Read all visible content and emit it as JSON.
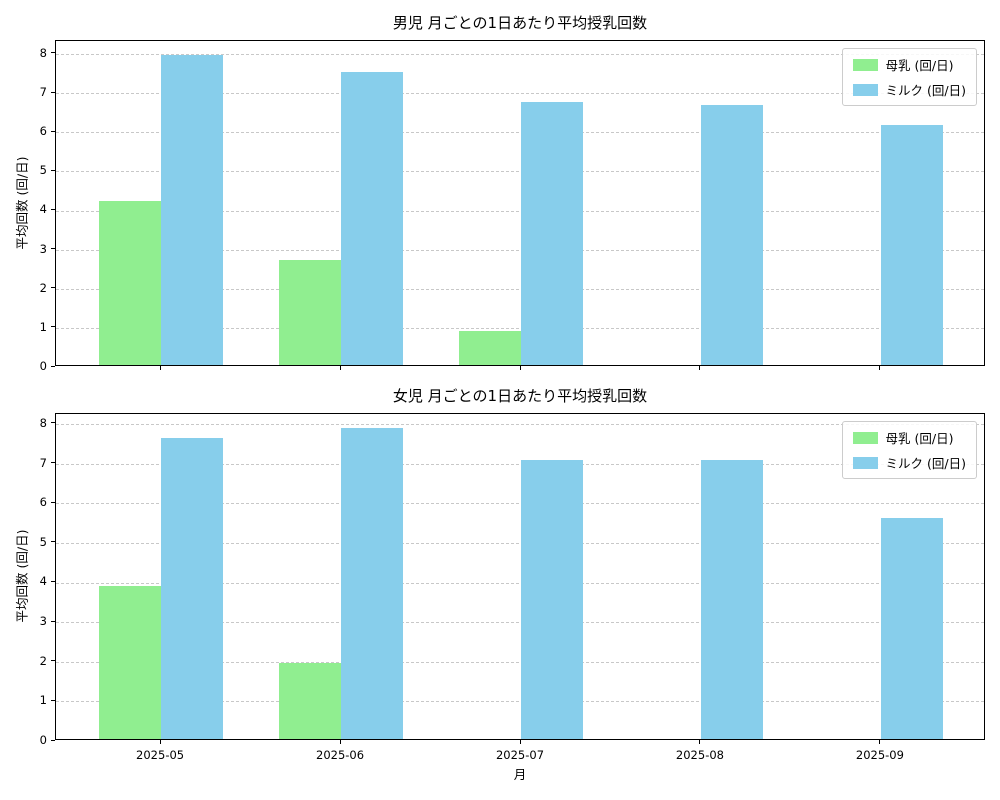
{
  "figure": {
    "background": "#ffffff",
    "colors": {
      "breast_milk": "#90ee90",
      "formula_milk": "#87ceeb",
      "grid": "#c8c8c8",
      "axis": "#000000"
    }
  },
  "chart_data": [
    {
      "type": "bar",
      "title": "男児 月ごとの1日あたり平均授乳回数",
      "xlabel": "",
      "ylabel": "平均回数 (回/日)",
      "categories": [
        "2025-05",
        "2025-06",
        "2025-07",
        "2025-08",
        "2025-09"
      ],
      "series": [
        {
          "name": "母乳 (回/日)",
          "color": "#90ee90",
          "values": [
            4.19,
            2.69,
            0.87,
            0,
            0
          ]
        },
        {
          "name": "ミルク (回/日)",
          "color": "#87ceeb",
          "values": [
            7.93,
            7.48,
            6.71,
            6.64,
            6.14
          ]
        }
      ],
      "ylim": [
        0,
        8.33
      ],
      "yticks": [
        0,
        1,
        2,
        3,
        4,
        5,
        6,
        7,
        8
      ],
      "grid": "horizontal-dashed",
      "legend_position": "upper right",
      "x_tick_labels_visible": false
    },
    {
      "type": "bar",
      "title": "女児 月ごとの1日あたり平均授乳回数",
      "xlabel": "月",
      "ylabel": "平均回数 (回/日)",
      "categories": [
        "2025-05",
        "2025-06",
        "2025-07",
        "2025-08",
        "2025-09"
      ],
      "series": [
        {
          "name": "母乳 (回/日)",
          "color": "#90ee90",
          "values": [
            3.87,
            1.93,
            0,
            0,
            0
          ]
        },
        {
          "name": "ミルク (回/日)",
          "color": "#87ceeb",
          "values": [
            7.6,
            7.86,
            7.03,
            7.03,
            5.58
          ]
        }
      ],
      "ylim": [
        0,
        8.25
      ],
      "yticks": [
        0,
        1,
        2,
        3,
        4,
        5,
        6,
        7,
        8
      ],
      "grid": "horizontal-dashed",
      "legend_position": "upper right",
      "x_tick_labels_visible": true
    }
  ]
}
